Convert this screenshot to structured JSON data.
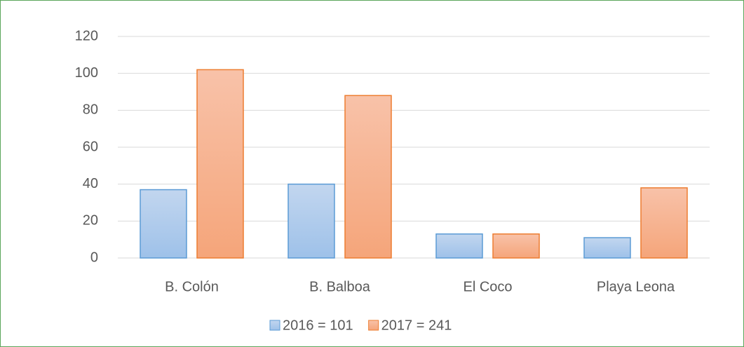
{
  "chart_data": {
    "type": "bar",
    "categories": [
      "B. Colón",
      "B. Balboa",
      "El Coco",
      "Playa Leona"
    ],
    "series": [
      {
        "name": "2016 = 101",
        "color": "#5b9bd5",
        "values": [
          37,
          40,
          13,
          11
        ]
      },
      {
        "name": "2017 = 241",
        "color": "#ed7d31",
        "values": [
          102,
          88,
          13,
          38
        ]
      }
    ],
    "ylim": [
      0,
      120
    ],
    "yticks": [
      0,
      20,
      40,
      60,
      80,
      100,
      120
    ],
    "grid": true,
    "legend": "bottom"
  }
}
